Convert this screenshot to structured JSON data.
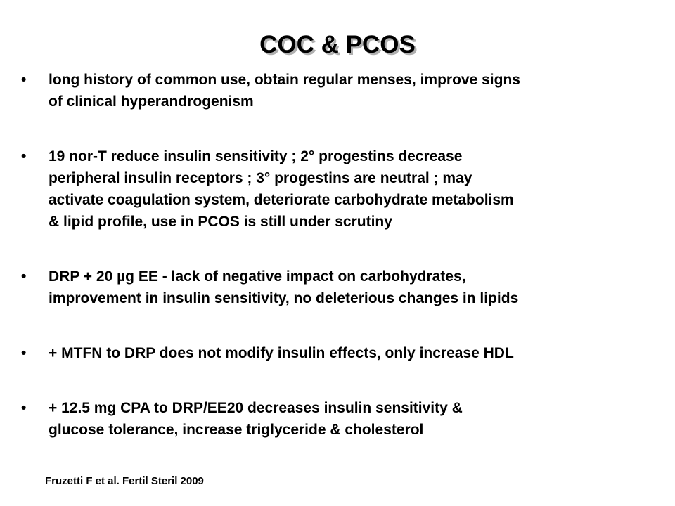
{
  "title": "COC & PCOS",
  "bullets": [
    [
      "long history of common use, obtain regular menses, improve signs",
      "of clinical hyperandrogenism"
    ],
    [
      "19 nor-T reduce insulin sensitivity ; 2° progestins decrease",
      "peripheral insulin receptors ; 3° progestins are neutral ; may",
      "activate coagulation system, deteriorate carbohydrate metabolism",
      "& lipid profile, use in PCOS is still under scrutiny"
    ],
    [
      "DRP + 20 µg EE - lack of negative impact on carbohydrates,",
      "improvement in insulin sensitivity, no deleterious changes in lipids"
    ],
    [
      "+ MTFN to DRP does not modify insulin effects, only increase HDL"
    ],
    [
      "+ 12.5 mg CPA to DRP/EE20 decreases insulin sensitivity &",
      "glucose tolerance, increase triglyceride & cholesterol"
    ]
  ],
  "citation": "Fruzetti F et al. Fertil Steril 2009"
}
